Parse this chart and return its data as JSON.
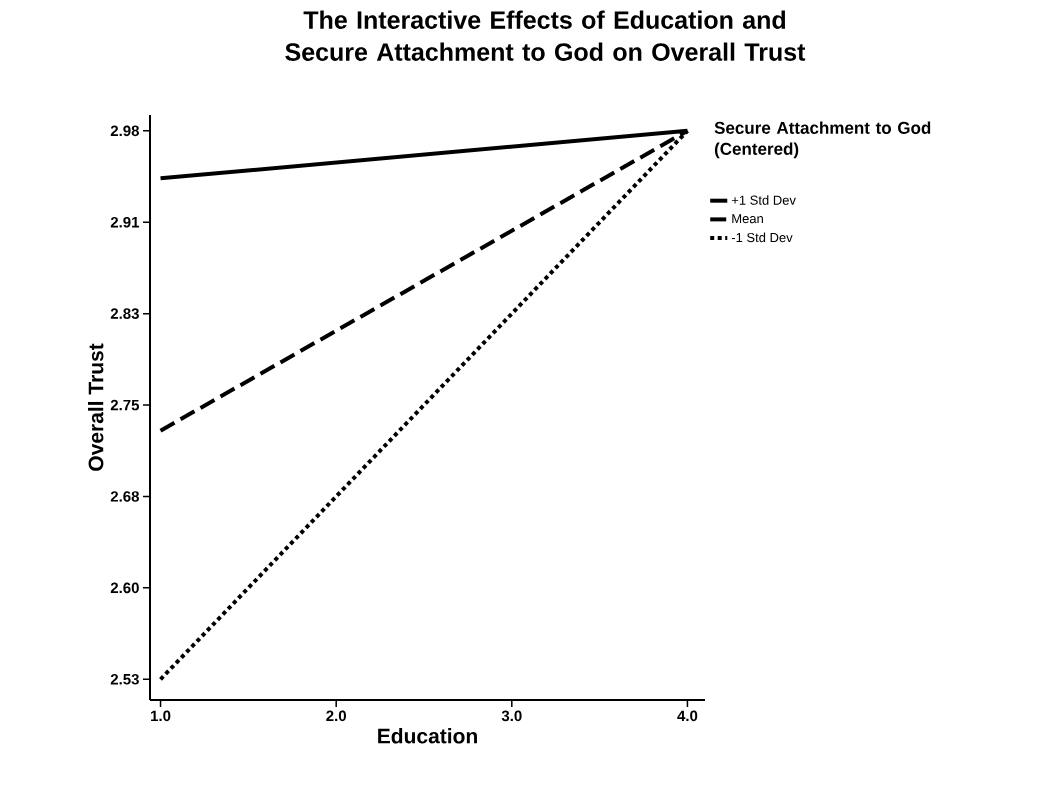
{
  "chart_data": {
    "type": "line",
    "title": "The Interactive Effects of Education and Secure Attachment to God on Overall Trust",
    "xlabel": "Education",
    "ylabel": "Overall Trust",
    "legend_title": "Secure Attachment to God (Centered)",
    "x": [
      1.0,
      4.0
    ],
    "series": [
      {
        "name": "+1 Std Dev",
        "color": "#000000",
        "values": [
          2.941,
          2.98
        ],
        "line_style": "solid"
      },
      {
        "name": "Mean",
        "color": "#000000",
        "values": [
          2.734,
          2.98
        ],
        "line_style": "dashed"
      },
      {
        "name": "-1 Std Dev",
        "color": "#000000",
        "values": [
          2.53,
          2.98
        ],
        "line_style": "dotted"
      }
    ],
    "xlim": [
      0.94,
      4.1
    ],
    "ylim": [
      2.513,
      2.993
    ],
    "xticks": [
      {
        "value": 1,
        "label": "1.0"
      },
      {
        "value": 2,
        "label": "2.0"
      },
      {
        "value": 3,
        "label": "3.0"
      },
      {
        "value": 4,
        "label": "4.0"
      }
    ],
    "yticks": [
      {
        "value": 2.53,
        "label": "2.53"
      },
      {
        "value": 2.605,
        "label": "2.60"
      },
      {
        "value": 2.68,
        "label": "2.68"
      },
      {
        "value": 2.755,
        "label": "2.75"
      },
      {
        "value": 2.83,
        "label": "2.83"
      },
      {
        "value": 2.905,
        "label": "2.91"
      },
      {
        "value": 2.98,
        "label": "2.98"
      }
    ],
    "legend": "top right",
    "grid": false,
    "marker": "none"
  }
}
